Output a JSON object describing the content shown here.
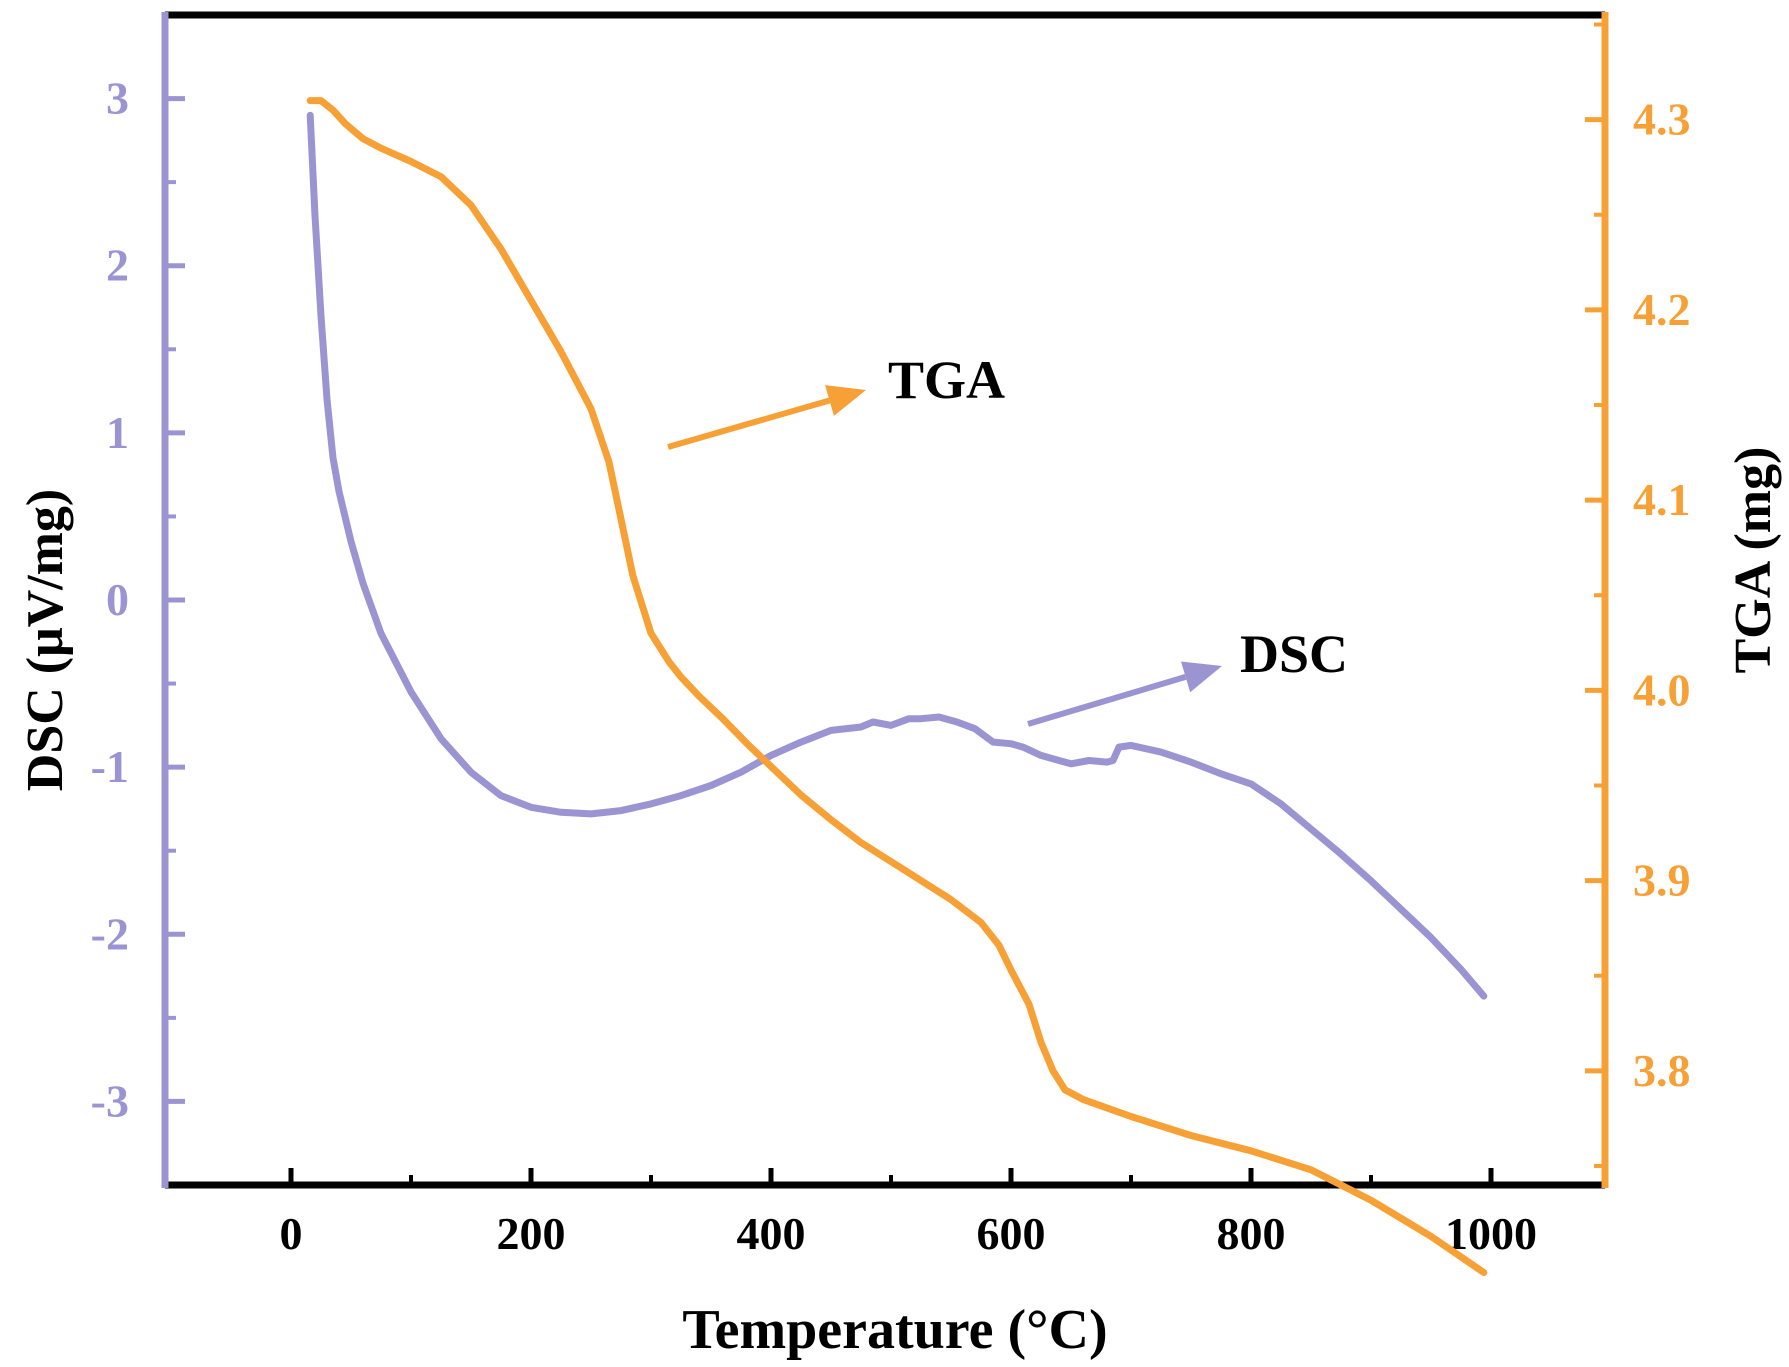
{
  "chart_data": {
    "type": "line",
    "xlabel": "Temperature (°C)",
    "ylabel_left": "DSC (μV/mg)",
    "ylabel_right": "TGA (mg)",
    "xlim": [
      -105,
      1095
    ],
    "ylim_left": [
      -3.5,
      3.5
    ],
    "ylim_right": [
      3.74,
      4.355
    ],
    "x_ticks": [
      0,
      200,
      400,
      600,
      800,
      1000
    ],
    "x_tick_labels": [
      "0",
      "200",
      "400",
      "600",
      "800",
      "1000"
    ],
    "y_left_ticks": [
      3,
      2,
      1,
      0,
      -1,
      -2,
      -3
    ],
    "y_left_tick_labels": [
      "3",
      "2",
      "1",
      "0",
      "-1",
      "-2",
      "-3"
    ],
    "y_right_ticks": [
      4.3,
      4.2,
      4.1,
      4.0,
      3.9,
      3.8
    ],
    "y_right_tick_labels": [
      "4.3",
      "4.2",
      "4.1",
      "4.0",
      "3.9",
      "3.8"
    ],
    "grid": false,
    "colors": {
      "dsc": "#9a95d2",
      "tga": "#f7a035",
      "frame": "#000000"
    },
    "series": [
      {
        "name": "DSC",
        "axis": "left",
        "x": [
          16,
          20,
          25,
          30,
          35,
          40,
          50,
          60,
          75,
          100,
          125,
          150,
          175,
          200,
          225,
          250,
          275,
          300,
          325,
          350,
          375,
          400,
          425,
          450,
          475,
          485,
          500,
          515,
          525,
          540,
          555,
          570,
          585,
          600,
          610,
          625,
          640,
          650,
          665,
          680,
          685,
          690,
          700,
          725,
          750,
          775,
          800,
          825,
          850,
          875,
          900,
          925,
          950,
          975,
          994
        ],
        "y": [
          2.9,
          2.3,
          1.7,
          1.2,
          0.85,
          0.65,
          0.35,
          0.1,
          -0.2,
          -0.55,
          -0.83,
          -1.03,
          -1.17,
          -1.24,
          -1.27,
          -1.28,
          -1.26,
          -1.22,
          -1.17,
          -1.11,
          -1.03,
          -0.93,
          -0.85,
          -0.78,
          -0.76,
          -0.73,
          -0.75,
          -0.71,
          -0.71,
          -0.7,
          -0.73,
          -0.77,
          -0.85,
          -0.86,
          -0.88,
          -0.93,
          -0.96,
          -0.98,
          -0.96,
          -0.97,
          -0.96,
          -0.88,
          -0.87,
          -0.91,
          -0.97,
          -1.04,
          -1.1,
          -1.22,
          -1.37,
          -1.52,
          -1.68,
          -1.85,
          -2.02,
          -2.21,
          -2.37
        ]
      },
      {
        "name": "TGA",
        "axis": "right",
        "x": [
          16,
          25,
          35,
          45,
          60,
          75,
          100,
          125,
          150,
          175,
          200,
          225,
          250,
          265,
          275,
          285,
          300,
          315,
          325,
          340,
          360,
          380,
          400,
          425,
          450,
          475,
          500,
          525,
          550,
          575,
          590,
          600,
          615,
          625,
          635,
          645,
          660,
          700,
          750,
          800,
          850,
          900,
          950,
          994
        ],
        "y": [
          4.31,
          4.31,
          4.305,
          4.298,
          4.29,
          4.285,
          4.278,
          4.27,
          4.255,
          4.232,
          4.205,
          4.178,
          4.148,
          4.12,
          4.09,
          4.06,
          4.03,
          4.015,
          4.007,
          3.997,
          3.985,
          3.972,
          3.96,
          3.945,
          3.932,
          3.92,
          3.91,
          3.9,
          3.89,
          3.878,
          3.866,
          3.853,
          3.835,
          3.815,
          3.8,
          3.79,
          3.785,
          3.776,
          3.766,
          3.758,
          3.748,
          3.732,
          3.713,
          3.694
        ]
      }
    ],
    "annotations": [
      {
        "text": "TGA",
        "color": "tga"
      },
      {
        "text": "DSC",
        "color": "dsc"
      }
    ]
  }
}
